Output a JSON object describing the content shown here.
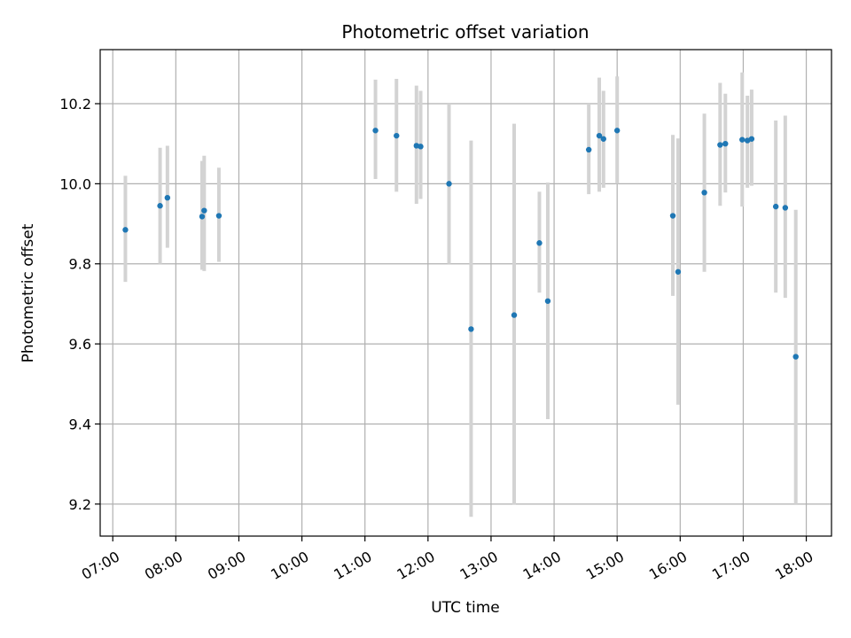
{
  "chart_data": {
    "type": "scatter",
    "title": "Photometric offset variation",
    "xlabel": "UTC time",
    "ylabel": "Photometric offset",
    "x_ticks": [
      "07:00",
      "08:00",
      "09:00",
      "10:00",
      "11:00",
      "12:00",
      "13:00",
      "14:00",
      "15:00",
      "16:00",
      "17:00",
      "18:00"
    ],
    "y_ticks": [
      "9.2",
      "9.4",
      "9.6",
      "9.8",
      "10.0",
      "10.2"
    ],
    "xlim": [
      "06:48",
      "18:24"
    ],
    "ylim": [
      9.12,
      10.335
    ],
    "grid": true,
    "colors": {
      "point": "#1f77b4",
      "errorbar": "#d3d3d3",
      "grid": "#b0b0b0"
    },
    "series": [
      {
        "points": [
          {
            "x": "07:12",
            "y": 9.885,
            "ylo": 9.755,
            "yhi": 10.02
          },
          {
            "x": "07:45",
            "y": 9.945,
            "ylo": 9.8,
            "yhi": 10.09
          },
          {
            "x": "07:52",
            "y": 9.965,
            "ylo": 9.84,
            "yhi": 10.095
          },
          {
            "x": "08:25",
            "y": 9.918,
            "ylo": 9.785,
            "yhi": 10.057
          },
          {
            "x": "08:27",
            "y": 9.933,
            "ylo": 9.782,
            "yhi": 10.07
          },
          {
            "x": "08:41",
            "y": 9.92,
            "ylo": 9.805,
            "yhi": 10.04
          },
          {
            "x": "11:10",
            "y": 10.133,
            "ylo": 10.012,
            "yhi": 10.26
          },
          {
            "x": "11:30",
            "y": 10.12,
            "ylo": 9.98,
            "yhi": 10.262
          },
          {
            "x": "11:49",
            "y": 10.095,
            "ylo": 9.95,
            "yhi": 10.245
          },
          {
            "x": "11:53",
            "y": 10.093,
            "ylo": 9.962,
            "yhi": 10.232
          },
          {
            "x": "12:20",
            "y": 10.0,
            "ylo": 9.8,
            "yhi": 10.2
          },
          {
            "x": "12:41",
            "y": 9.637,
            "ylo": 9.168,
            "yhi": 10.108
          },
          {
            "x": "13:22",
            "y": 9.672,
            "ylo": 9.198,
            "yhi": 10.15
          },
          {
            "x": "13:46",
            "y": 9.852,
            "ylo": 9.728,
            "yhi": 9.98
          },
          {
            "x": "13:54",
            "y": 9.707,
            "ylo": 9.412,
            "yhi": 10.003
          },
          {
            "x": "14:33",
            "y": 10.085,
            "ylo": 9.974,
            "yhi": 10.2
          },
          {
            "x": "14:43",
            "y": 10.12,
            "ylo": 9.98,
            "yhi": 10.265
          },
          {
            "x": "14:47",
            "y": 10.112,
            "ylo": 9.99,
            "yhi": 10.232
          },
          {
            "x": "15:00",
            "y": 10.133,
            "ylo": 10.0,
            "yhi": 10.268
          },
          {
            "x": "15:53",
            "y": 9.92,
            "ylo": 9.72,
            "yhi": 10.122
          },
          {
            "x": "15:58",
            "y": 9.78,
            "ylo": 9.448,
            "yhi": 10.113
          },
          {
            "x": "16:23",
            "y": 9.978,
            "ylo": 9.78,
            "yhi": 10.175
          },
          {
            "x": "16:38",
            "y": 10.097,
            "ylo": 9.945,
            "yhi": 10.252
          },
          {
            "x": "16:43",
            "y": 10.1,
            "ylo": 9.978,
            "yhi": 10.225
          },
          {
            "x": "16:59",
            "y": 10.11,
            "ylo": 9.943,
            "yhi": 10.278
          },
          {
            "x": "17:04",
            "y": 10.108,
            "ylo": 9.99,
            "yhi": 10.22
          },
          {
            "x": "17:08",
            "y": 10.112,
            "ylo": 9.995,
            "yhi": 10.235
          },
          {
            "x": "17:31",
            "y": 9.943,
            "ylo": 9.728,
            "yhi": 10.158
          },
          {
            "x": "17:40",
            "y": 9.94,
            "ylo": 9.715,
            "yhi": 10.17
          },
          {
            "x": "17:50",
            "y": 9.568,
            "ylo": 9.2,
            "yhi": 9.935
          }
        ]
      }
    ]
  }
}
